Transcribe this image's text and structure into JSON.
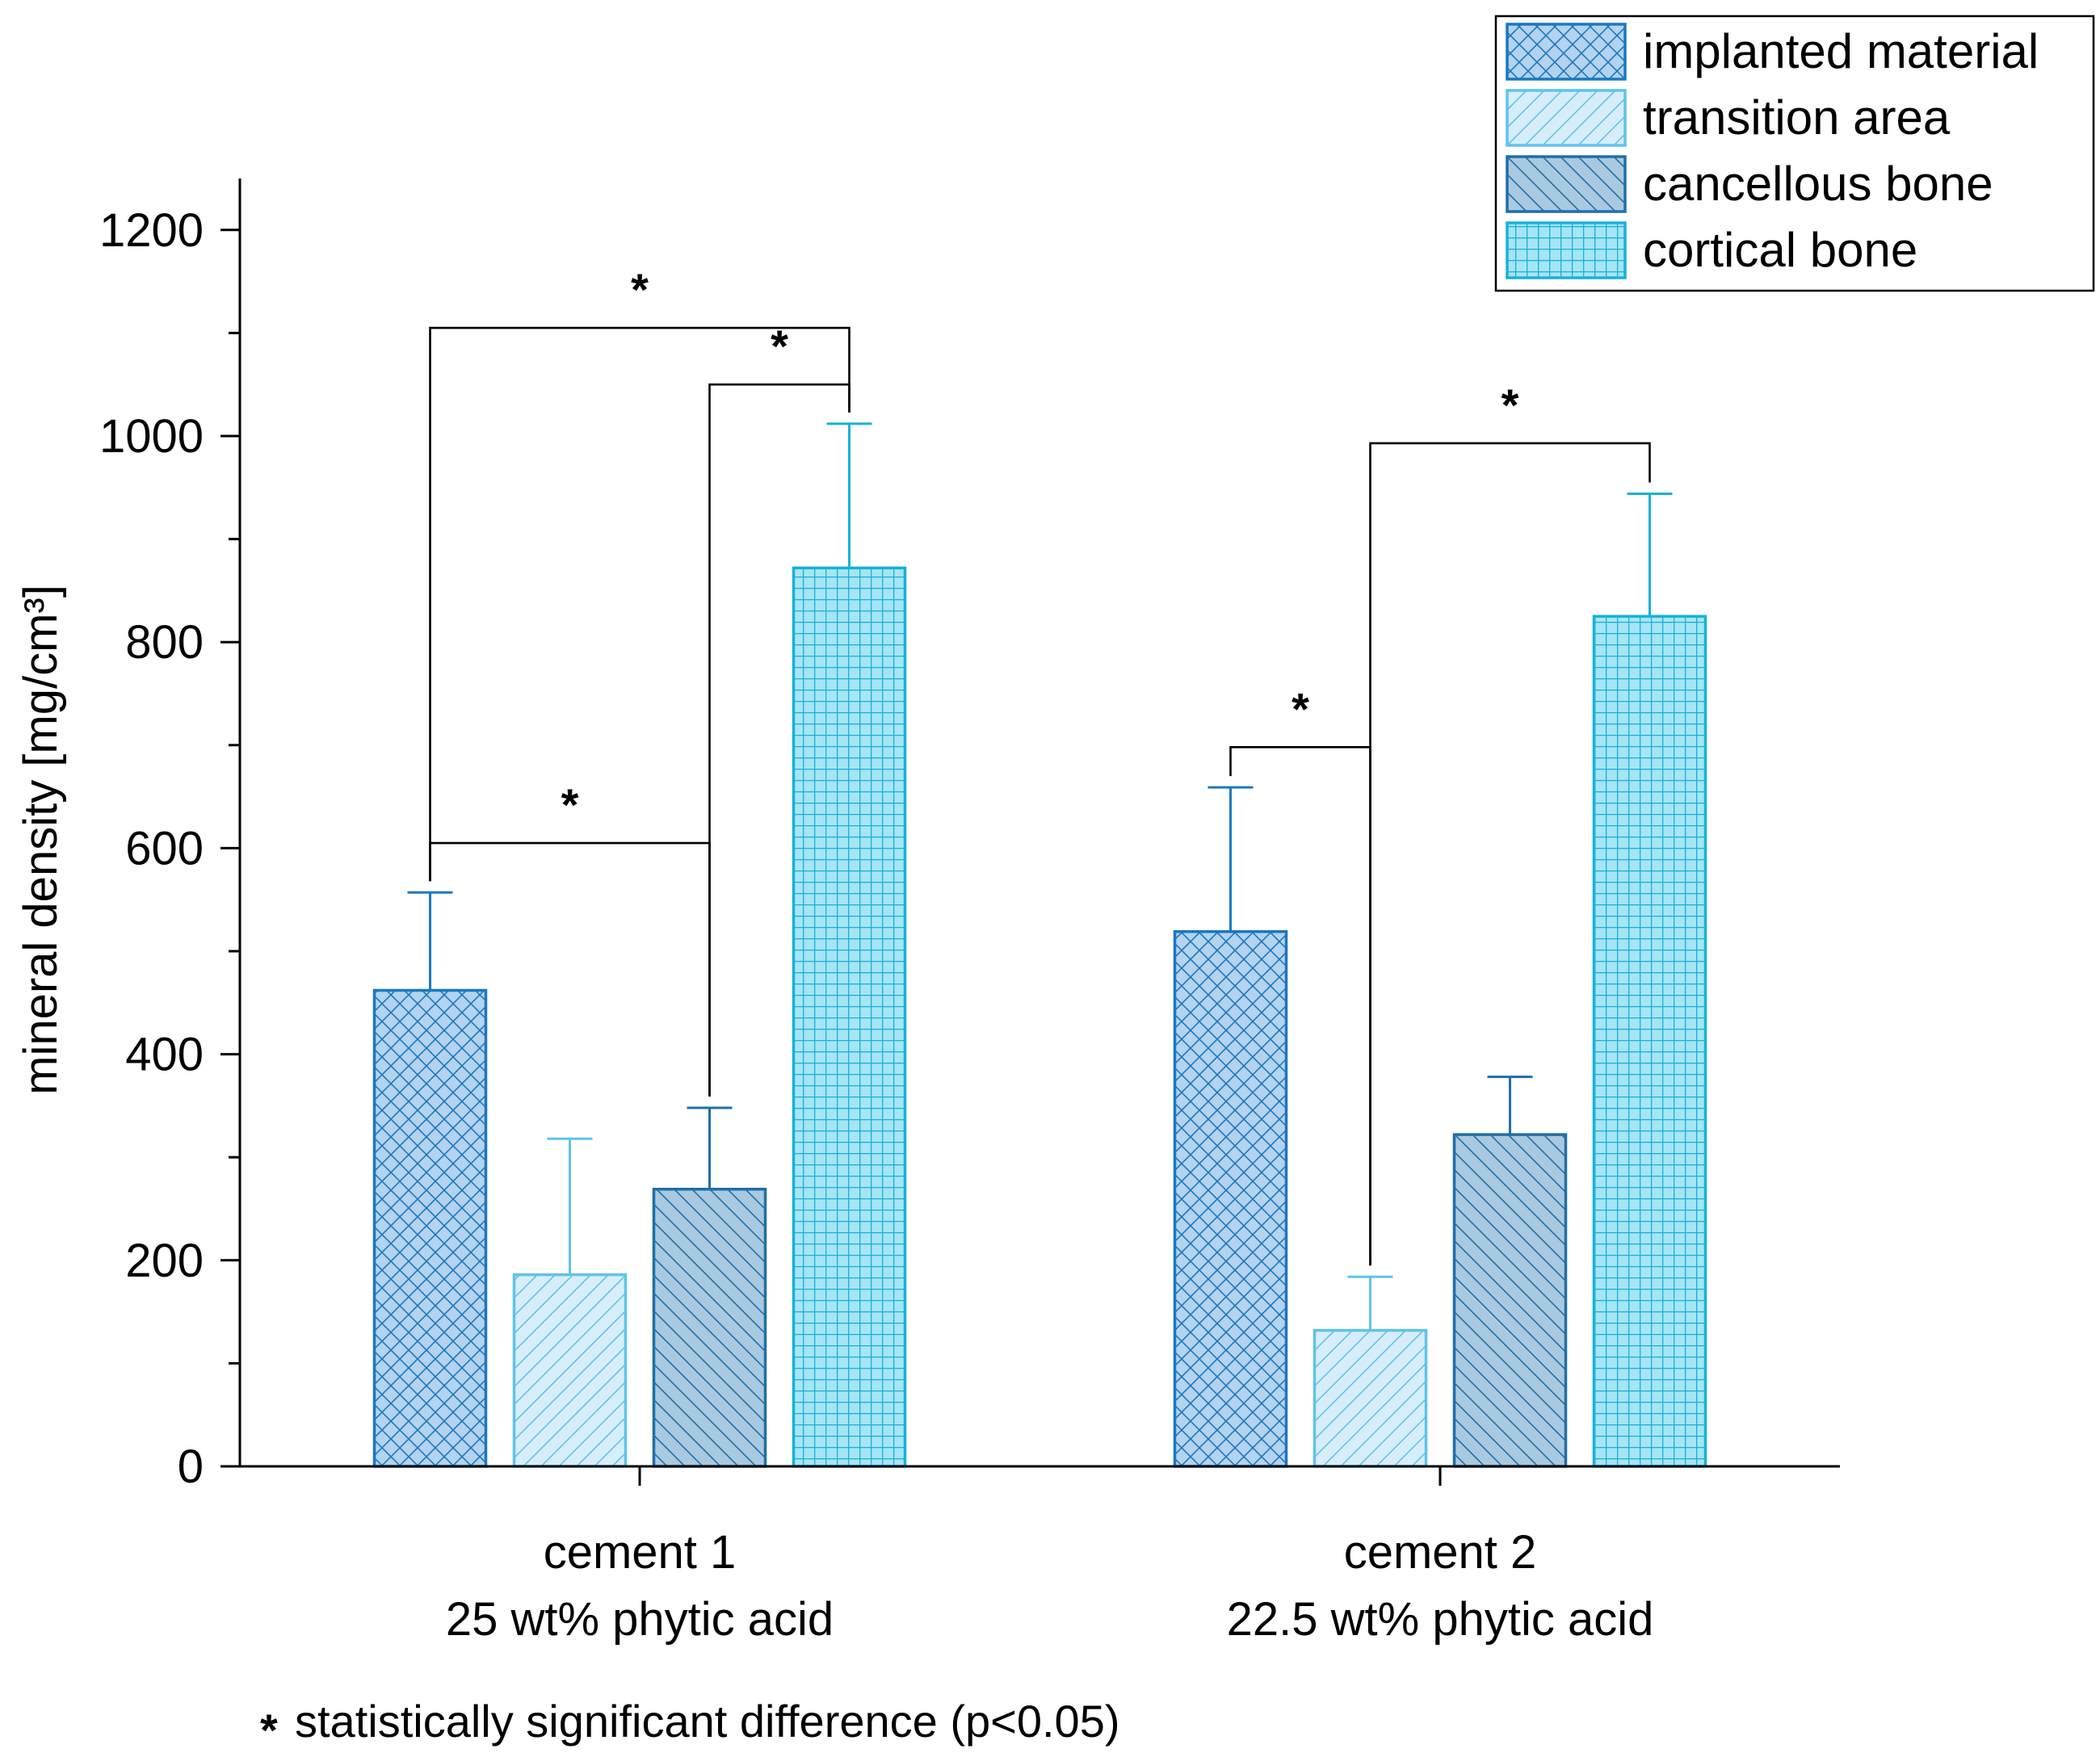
{
  "chart_data": {
    "type": "bar",
    "title": "",
    "xlabel": "",
    "ylabel": "mineral density [mg/cm³]",
    "ylim": [
      0,
      1250
    ],
    "yticks": [
      0,
      200,
      400,
      600,
      800,
      1000,
      1200
    ],
    "grid": false,
    "legend_position": "top-right",
    "categories": [
      {
        "line1": "cement 1",
        "line2": "25 wt% phytic acid"
      },
      {
        "line1": "cement 2",
        "line2": "22.5 wt% phytic acid"
      }
    ],
    "series": [
      {
        "name": "implanted material",
        "pattern": "crosshatch",
        "fill": "#b3d3ee",
        "stroke": "#1a78c2",
        "values": [
          462,
          519
        ],
        "errors": [
          95,
          140
        ]
      },
      {
        "name": "transition area",
        "pattern": "forward-diagonal",
        "fill": "#d7eefa",
        "stroke": "#5fc3ea",
        "values": [
          186,
          132
        ],
        "errors": [
          132,
          52
        ]
      },
      {
        "name": "cancellous bone",
        "pattern": "backward-diagonal",
        "fill": "#a9c9e0",
        "stroke": "#1f6fa8",
        "values": [
          269,
          322
        ],
        "errors": [
          79,
          56
        ]
      },
      {
        "name": "cortical bone",
        "pattern": "grid",
        "fill": "#a6e5f4",
        "stroke": "#17b1d9",
        "values": [
          872,
          825
        ],
        "errors": [
          140,
          119
        ]
      }
    ],
    "significance": [
      {
        "category": 0,
        "from_series": 0,
        "to_series": 3,
        "bracket_y": 1105,
        "label": "*"
      },
      {
        "category": 0,
        "from_series": 2,
        "to_series": 3,
        "bracket_y": 1050,
        "label": "*"
      },
      {
        "category": 0,
        "from_series": 0,
        "to_series": 2,
        "bracket_y": 605,
        "label": "*"
      },
      {
        "category": 1,
        "from_series": 1,
        "to_series": 3,
        "bracket_y": 993,
        "label": "*"
      },
      {
        "category": 1,
        "from_series": 0,
        "to_series": 1,
        "bracket_y": 698,
        "label": "*"
      }
    ],
    "footnote_marker": "*",
    "footnote": "statistically significant difference (p<0.05)"
  }
}
